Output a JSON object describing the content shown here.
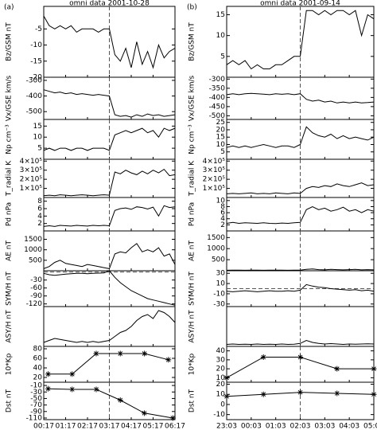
{
  "chart_data": [
    {
      "type": "line",
      "title": "omni data 2001-10-28",
      "panel_label": "(a)",
      "ylabel": "Bz/GSM nT",
      "x": [
        0,
        0.25,
        0.5,
        0.75,
        1,
        1.25,
        1.5,
        1.75,
        2,
        2.25,
        2.5,
        2.75,
        3,
        3.25,
        3.5,
        3.75,
        4,
        4.25,
        4.5,
        4.75,
        5,
        5.25,
        5.5,
        5.75,
        6
      ],
      "values": [
        -1,
        -4,
        -5,
        -4,
        -5,
        -4,
        -6,
        -5,
        -5,
        -5,
        -6,
        -5,
        -5,
        -13,
        -15,
        -11,
        -17,
        -9,
        -16,
        -12,
        -17,
        -10,
        -14,
        -12,
        -11
      ],
      "xlim": [
        0,
        6
      ],
      "ylim": [
        -20,
        2
      ],
      "yticks": [
        -5,
        -10,
        -15,
        -20
      ],
      "vline": 3
    },
    {
      "type": "line",
      "ylabel": "Vx/GSE km/s",
      "x": [
        0,
        0.25,
        0.5,
        0.75,
        1,
        1.25,
        1.5,
        1.75,
        2,
        2.25,
        2.5,
        2.75,
        3,
        3.25,
        3.5,
        3.75,
        4,
        4.25,
        4.5,
        4.75,
        5,
        5.25,
        5.5,
        5.75,
        6
      ],
      "values": [
        -360,
        -370,
        -380,
        -375,
        -385,
        -380,
        -390,
        -385,
        -390,
        -395,
        -390,
        -395,
        -400,
        -520,
        -530,
        -525,
        -535,
        -520,
        -530,
        -515,
        -525,
        -520,
        -530,
        -525,
        -520
      ],
      "xlim": [
        0,
        6
      ],
      "ylim": [
        -550,
        -280
      ],
      "yticks": [
        -300,
        -400,
        -500
      ],
      "vline": 3
    },
    {
      "type": "line",
      "ylabel": "Np cm⁻³",
      "x": [
        0,
        0.25,
        0.5,
        0.75,
        1,
        1.25,
        1.5,
        1.75,
        2,
        2.25,
        2.5,
        2.75,
        3,
        3.25,
        3.5,
        3.75,
        4,
        4.25,
        4.5,
        4.75,
        5,
        5.25,
        5.5,
        5.75,
        6
      ],
      "values": [
        4,
        5,
        4,
        5,
        5,
        4,
        5,
        5,
        4,
        5,
        5,
        5,
        4,
        11,
        12,
        13,
        12,
        13,
        14,
        12,
        13,
        10,
        14,
        13,
        14
      ],
      "xlim": [
        0,
        6
      ],
      "ylim": [
        0,
        18
      ],
      "yticks": [
        5,
        10,
        15
      ],
      "vline": 3
    },
    {
      "type": "line",
      "ylabel": "T_radial K",
      "x": [
        0,
        0.25,
        0.5,
        0.75,
        1,
        1.25,
        1.5,
        1.75,
        2,
        2.25,
        2.5,
        2.75,
        3,
        3.25,
        3.5,
        3.75,
        4,
        4.25,
        4.5,
        4.75,
        5,
        5.25,
        5.5,
        5.75,
        6
      ],
      "values": [
        20000,
        25000,
        20000,
        30000,
        25000,
        20000,
        25000,
        30000,
        25000,
        20000,
        25000,
        30000,
        25000,
        280000,
        260000,
        300000,
        270000,
        250000,
        290000,
        260000,
        300000,
        270000,
        310000,
        240000,
        250000
      ],
      "xlim": [
        0,
        6
      ],
      "ylim": [
        0,
        420000
      ],
      "yticks": [
        {
          "value": 100000,
          "label": "1×10⁵"
        },
        {
          "value": 200000,
          "label": "2×10⁵"
        },
        {
          "value": 300000,
          "label": "3×10⁵"
        },
        {
          "value": 400000,
          "label": "4×10⁵"
        }
      ],
      "vline": 3
    },
    {
      "type": "line",
      "ylabel": "Pd nPa",
      "x": [
        0,
        0.25,
        0.5,
        0.75,
        1,
        1.25,
        1.5,
        1.75,
        2,
        2.25,
        2.5,
        2.75,
        3,
        3.25,
        3.5,
        3.75,
        4,
        4.25,
        4.5,
        4.75,
        5,
        5.25,
        5.5,
        5.75,
        6
      ],
      "values": [
        1.2,
        1.4,
        1.2,
        1.5,
        1.4,
        1.3,
        1.5,
        1.4,
        1.3,
        1.5,
        1.4,
        1.5,
        1.4,
        5.5,
        6,
        6.2,
        5.8,
        6.5,
        6.3,
        5.9,
        6.4,
        4,
        6.8,
        6.3,
        6.5
      ],
      "xlim": [
        0,
        6
      ],
      "ylim": [
        0,
        9
      ],
      "yticks": [
        2,
        4,
        6,
        8
      ],
      "vline": 3
    },
    {
      "type": "line",
      "ylabel": "AE nT",
      "x": [
        0,
        0.25,
        0.5,
        0.75,
        1,
        1.25,
        1.5,
        1.75,
        2,
        2.25,
        2.5,
        2.75,
        3,
        3.25,
        3.5,
        3.75,
        4,
        4.25,
        4.5,
        4.75,
        5,
        5.25,
        5.5,
        5.75,
        6
      ],
      "values": [
        100,
        200,
        400,
        500,
        350,
        300,
        250,
        200,
        300,
        250,
        200,
        150,
        100,
        800,
        900,
        850,
        1100,
        1300,
        900,
        1000,
        900,
        1100,
        700,
        800,
        300
      ],
      "xlim": [
        0,
        6
      ],
      "ylim": [
        0,
        1900
      ],
      "yticks": [
        500,
        1000,
        1500
      ],
      "vline": 3
    },
    {
      "type": "line",
      "ylabel": "SYM/H nT",
      "x": [
        0,
        0.25,
        0.5,
        0.75,
        1,
        1.25,
        1.5,
        1.75,
        2,
        2.25,
        2.5,
        2.75,
        3,
        3.25,
        3.5,
        3.75,
        4,
        4.25,
        4.5,
        4.75,
        5,
        5.25,
        5.5,
        5.75,
        6
      ],
      "values": [
        -5,
        -10,
        -12,
        -10,
        -8,
        -6,
        -5,
        -5,
        -6,
        -5,
        -4,
        -3,
        5,
        -20,
        -40,
        -55,
        -70,
        -80,
        -90,
        -100,
        -105,
        -110,
        -115,
        -120,
        -125
      ],
      "xlim": [
        0,
        6
      ],
      "ylim": [
        -130,
        5
      ],
      "yticks": [
        -30,
        -60,
        -90,
        -120
      ],
      "vline": 3,
      "hline": 0
    },
    {
      "type": "line",
      "ylabel": "ASY/H nT",
      "x": [
        0,
        0.25,
        0.5,
        0.75,
        1,
        1.25,
        1.5,
        1.75,
        2,
        2.25,
        2.5,
        2.75,
        3,
        3.25,
        3.5,
        3.75,
        4,
        4.25,
        4.5,
        4.75,
        5,
        5.25,
        5.5,
        5.75,
        6
      ],
      "values": [
        20,
        30,
        40,
        35,
        30,
        25,
        20,
        25,
        20,
        25,
        20,
        25,
        30,
        50,
        70,
        80,
        100,
        130,
        150,
        160,
        140,
        180,
        170,
        150,
        120
      ],
      "xlim": [
        0,
        6
      ],
      "ylim": [
        0,
        200
      ],
      "yticks": [],
      "vline": 3
    },
    {
      "type": "line",
      "marker": "asterisk",
      "ylabel": "10*Kp",
      "x": [
        0.2,
        1.3,
        2.4,
        3.5,
        4.6,
        5.7
      ],
      "values": [
        27,
        27,
        70,
        70,
        70,
        57
      ],
      "xlim": [
        0,
        6
      ],
      "ylim": [
        10,
        85
      ],
      "yticks": [
        20,
        40,
        60,
        80
      ],
      "vline": 3
    },
    {
      "type": "line",
      "marker": "asterisk",
      "ylabel": "Dst nT",
      "x": [
        0.2,
        1.3,
        2.4,
        3.5,
        4.6,
        5.9
      ],
      "values": [
        -20,
        -22,
        -22,
        -55,
        -95,
        -110
      ],
      "xlim": [
        0,
        6
      ],
      "ylim": [
        -115,
        0
      ],
      "yticks": [
        -10,
        -30,
        -50,
        -70,
        -90,
        -110
      ],
      "vline": 3,
      "xticks": [
        {
          "value": 0,
          "label": "00:17"
        },
        {
          "value": 1,
          "label": "01:17"
        },
        {
          "value": 2,
          "label": "02:17"
        },
        {
          "value": 3,
          "label": "03:17"
        },
        {
          "value": 4,
          "label": "04:17"
        },
        {
          "value": 5,
          "label": "05:17"
        },
        {
          "value": 6,
          "label": "06:17"
        }
      ]
    },
    {
      "type": "line",
      "title": "omni data 2001-09-14",
      "panel_label": "(b)",
      "ylabel": "Bz/GSM nT",
      "x": [
        0,
        0.25,
        0.5,
        0.75,
        1,
        1.25,
        1.5,
        1.75,
        2,
        2.25,
        2.5,
        2.75,
        3,
        3.25,
        3.5,
        3.75,
        4,
        4.25,
        4.5,
        4.75,
        5,
        5.25,
        5.5,
        5.75,
        6
      ],
      "values": [
        3,
        4,
        3,
        4,
        2,
        3,
        2,
        2,
        3,
        3,
        4,
        5,
        5,
        16,
        16,
        15,
        16,
        15,
        16,
        16,
        15,
        16,
        10,
        15,
        14
      ],
      "xlim": [
        0,
        6
      ],
      "ylim": [
        0,
        17
      ],
      "yticks": [
        5,
        10,
        15
      ],
      "vline": 3
    },
    {
      "type": "line",
      "ylabel": "Vx/GSE km/s",
      "x": [
        0,
        0.25,
        0.5,
        0.75,
        1,
        1.25,
        1.5,
        1.75,
        2,
        2.25,
        2.5,
        2.75,
        3,
        3.25,
        3.5,
        3.75,
        4,
        4.25,
        4.5,
        4.75,
        5,
        5.25,
        5.5,
        5.75,
        6
      ],
      "values": [
        -385,
        -380,
        -385,
        -380,
        -378,
        -380,
        -382,
        -385,
        -380,
        -383,
        -380,
        -385,
        -380,
        -410,
        -420,
        -415,
        -425,
        -420,
        -430,
        -425,
        -430,
        -425,
        -430,
        -428,
        -425
      ],
      "xlim": [
        0,
        6
      ],
      "ylim": [
        -520,
        -290
      ],
      "yticks": [
        -300,
        -350,
        -400,
        -450,
        -500
      ],
      "vline": 3
    },
    {
      "type": "line",
      "ylabel": "Np cm⁻³",
      "x": [
        0,
        0.25,
        0.5,
        0.75,
        1,
        1.25,
        1.5,
        1.75,
        2,
        2.25,
        2.5,
        2.75,
        3,
        3.25,
        3.5,
        3.75,
        4,
        4.25,
        4.5,
        4.75,
        5,
        5.25,
        5.5,
        5.75,
        6
      ],
      "values": [
        8,
        9,
        8,
        9,
        8,
        9,
        10,
        9,
        8,
        9,
        9,
        8,
        10,
        22,
        18,
        16,
        15,
        17,
        14,
        16,
        14,
        15,
        14,
        13,
        15
      ],
      "xlim": [
        0,
        6
      ],
      "ylim": [
        0,
        27
      ],
      "yticks": [
        5,
        10,
        15,
        20,
        25
      ],
      "vline": 3
    },
    {
      "type": "line",
      "ylabel": "T_radial K",
      "x": [
        0,
        0.25,
        0.5,
        0.75,
        1,
        1.25,
        1.5,
        1.75,
        2,
        2.25,
        2.5,
        2.75,
        3,
        3.25,
        3.5,
        3.75,
        4,
        4.25,
        4.5,
        4.75,
        5,
        5.25,
        5.5,
        5.75,
        6
      ],
      "values": [
        40000,
        45000,
        40000,
        45000,
        50000,
        40000,
        45000,
        40000,
        50000,
        45000,
        40000,
        50000,
        45000,
        100000,
        120000,
        110000,
        130000,
        120000,
        150000,
        130000,
        120000,
        140000,
        160000,
        130000,
        140000
      ],
      "xlim": [
        0,
        6
      ],
      "ylim": [
        0,
        420000
      ],
      "yticks": [
        {
          "value": 100000,
          "label": "1×10⁵"
        },
        {
          "value": 200000,
          "label": "2×10⁵"
        },
        {
          "value": 300000,
          "label": "3×10⁵"
        },
        {
          "value": 400000,
          "label": "4×10⁵"
        }
      ],
      "vline": 3
    },
    {
      "type": "line",
      "ylabel": "Pd nPa",
      "x": [
        0,
        0.25,
        0.5,
        0.75,
        1,
        1.25,
        1.5,
        1.75,
        2,
        2.25,
        2.5,
        2.75,
        3,
        3.25,
        3.5,
        3.75,
        4,
        4.25,
        4.5,
        4.75,
        5,
        5.25,
        5.5,
        5.75,
        6
      ],
      "values": [
        2.5,
        2.8,
        2.5,
        2.7,
        2.6,
        2.5,
        2.7,
        2.5,
        2.4,
        2.6,
        2.5,
        2.7,
        2.8,
        7,
        8,
        7,
        7.5,
        6.5,
        7,
        7.8,
        6.5,
        7,
        6,
        7,
        6.5
      ],
      "xlim": [
        0,
        6
      ],
      "ylim": [
        0,
        11
      ],
      "yticks": [
        2,
        4,
        6,
        8,
        10
      ],
      "vline": 3
    },
    {
      "type": "line",
      "ylabel": "AE nT",
      "x": [
        0,
        0.25,
        0.5,
        0.75,
        1,
        1.25,
        1.5,
        1.75,
        2,
        2.25,
        2.5,
        2.75,
        3,
        3.25,
        3.5,
        3.75,
        4,
        4.25,
        4.5,
        4.75,
        5,
        5.25,
        5.5,
        5.75,
        6
      ],
      "values": [
        20,
        30,
        25,
        20,
        30,
        25,
        20,
        25,
        30,
        25,
        20,
        25,
        30,
        60,
        80,
        50,
        40,
        60,
        50,
        40,
        50,
        60,
        40,
        50,
        40
      ],
      "xlim": [
        0,
        6
      ],
      "ylim": [
        0,
        1800
      ],
      "yticks": [
        500,
        1000,
        1500
      ],
      "vline": 3
    },
    {
      "type": "line",
      "ylabel": "SYM/H nT",
      "x": [
        0,
        0.25,
        0.5,
        0.75,
        1,
        1.25,
        1.5,
        1.75,
        2,
        2.25,
        2.5,
        2.75,
        3,
        3.25,
        3.5,
        3.75,
        4,
        4.25,
        4.5,
        4.75,
        5,
        5.25,
        5.5,
        5.75,
        6
      ],
      "values": [
        -5,
        -6,
        -5,
        -4,
        -5,
        -6,
        -5,
        -4,
        -5,
        -5,
        -4,
        -5,
        -3,
        8,
        5,
        3,
        2,
        0,
        -1,
        -2,
        -3,
        -2,
        -4,
        -3,
        -5
      ],
      "xlim": [
        0,
        6
      ],
      "ylim": [
        -35,
        35
      ],
      "yticks": [
        30,
        10,
        -10,
        -30
      ],
      "vline": 3,
      "hline": 0
    },
    {
      "type": "line",
      "ylabel": "ASY/H nT",
      "x": [
        0,
        0.25,
        0.5,
        0.75,
        1,
        1.25,
        1.5,
        1.75,
        2,
        2.25,
        2.5,
        2.75,
        3,
        3.25,
        3.5,
        3.75,
        4,
        4.25,
        4.5,
        4.75,
        5,
        5.25,
        5.5,
        5.75,
        6
      ],
      "values": [
        10,
        12,
        10,
        11,
        10,
        12,
        10,
        11,
        10,
        12,
        10,
        11,
        15,
        30,
        20,
        15,
        12,
        14,
        12,
        10,
        12,
        11,
        12,
        13,
        12
      ],
      "xlim": [
        0,
        6
      ],
      "ylim": [
        0,
        200
      ],
      "yticks": [],
      "vline": 3
    },
    {
      "type": "line",
      "marker": "asterisk",
      "ylabel": "10*Kp",
      "x": [
        0,
        1.5,
        3,
        4.5,
        6
      ],
      "values": [
        10,
        33,
        33,
        20,
        20
      ],
      "xlim": [
        0,
        6
      ],
      "ylim": [
        5,
        45
      ],
      "yticks": [
        10,
        20,
        30,
        40
      ],
      "vline": 3
    },
    {
      "type": "line",
      "marker": "asterisk",
      "ylabel": "Dst nT",
      "x": [
        0,
        1.5,
        3,
        4.5,
        6
      ],
      "values": [
        8,
        10,
        12,
        11,
        10
      ],
      "xlim": [
        0,
        6
      ],
      "ylim": [
        -15,
        22
      ],
      "yticks": [
        20,
        10,
        0,
        -10
      ],
      "vline": 3,
      "xticks": [
        {
          "value": 0,
          "label": "23:03"
        },
        {
          "value": 1,
          "label": "00:03"
        },
        {
          "value": 2,
          "label": "01:03"
        },
        {
          "value": 3,
          "label": "02:03"
        },
        {
          "value": 4,
          "label": "03:03"
        },
        {
          "value": 5,
          "label": "04:03"
        },
        {
          "value": 6,
          "label": "05:03"
        }
      ]
    }
  ]
}
